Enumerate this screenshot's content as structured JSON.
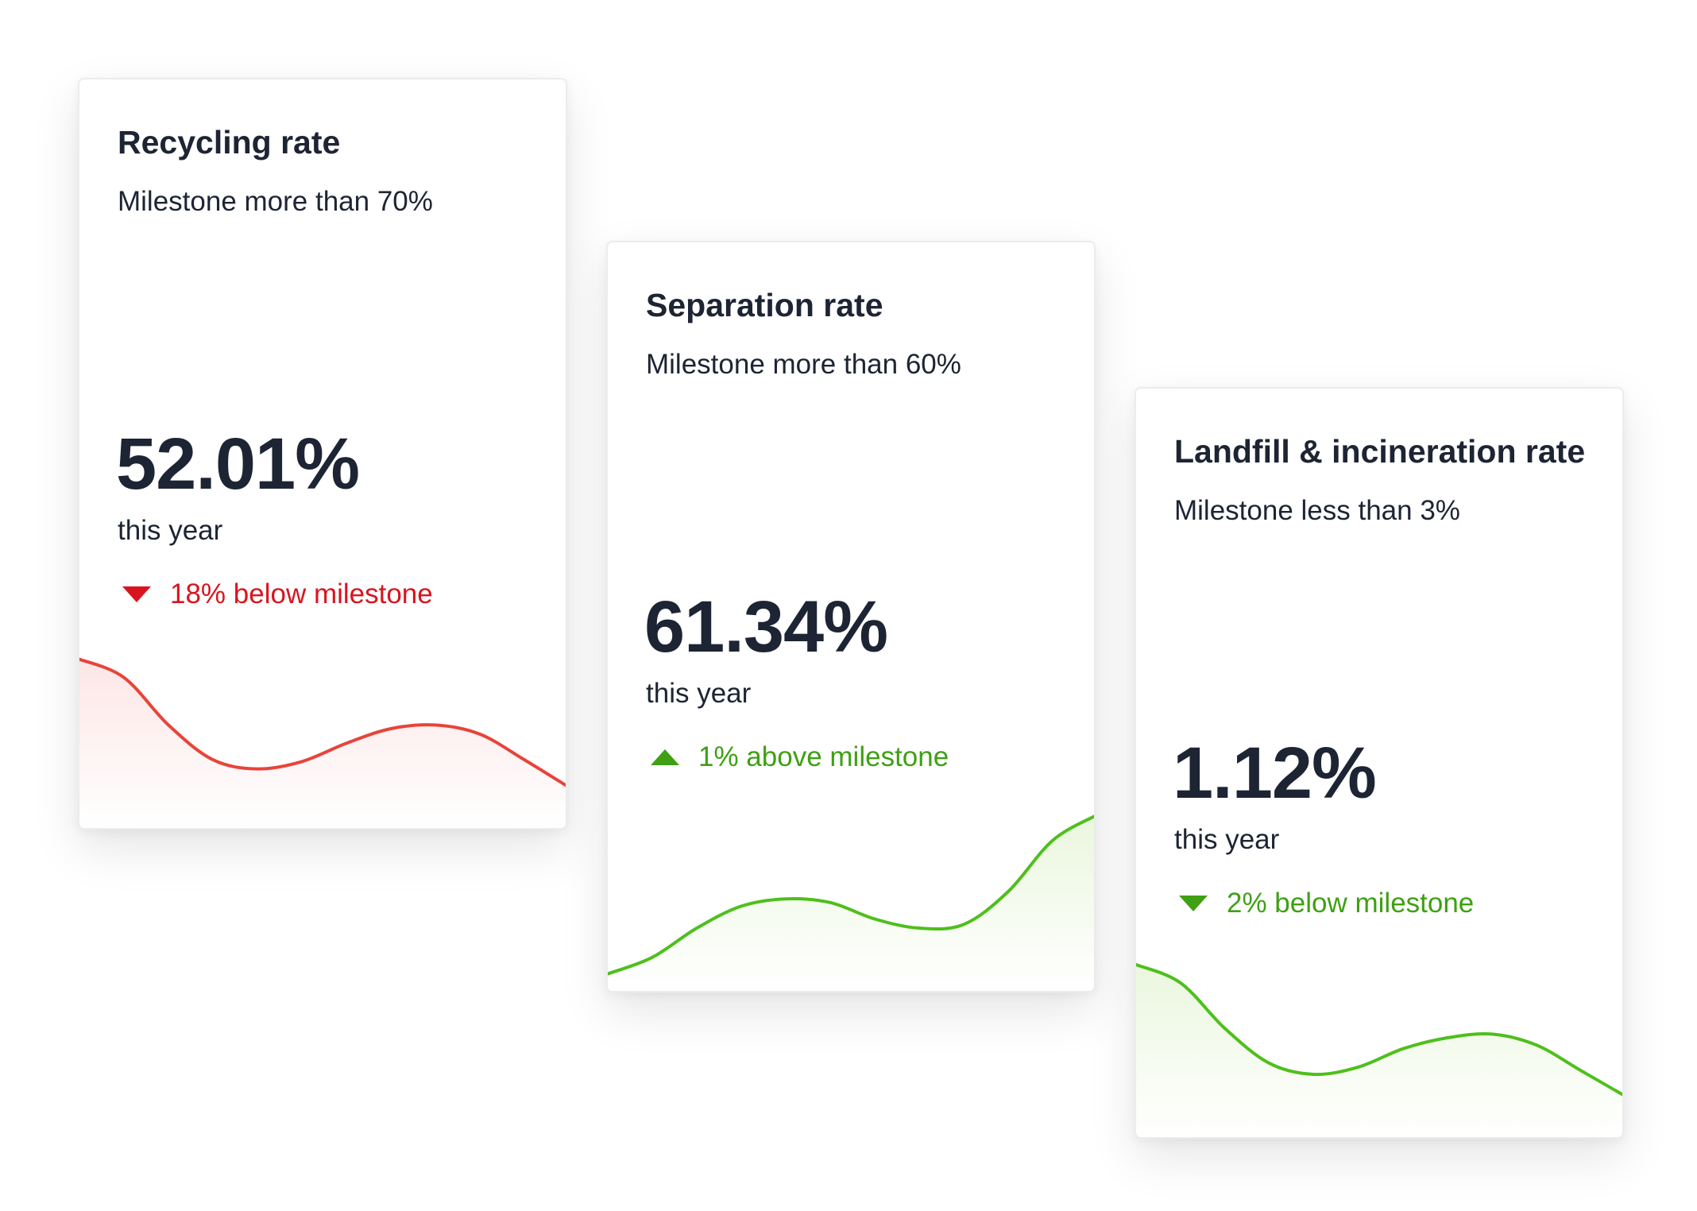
{
  "cards": [
    {
      "title": "Recycling rate",
      "milestone": "Milestone more than 70%",
      "value": "52.01%",
      "period": "this year",
      "delta": "18% below milestone",
      "direction": "down",
      "status_color": "#d9141e",
      "line_color": "#e8443a",
      "fill_color": "#fde6e6",
      "sparkline_values": [
        0.88,
        0.78,
        0.52,
        0.33,
        0.28,
        0.32,
        0.42,
        0.5,
        0.52,
        0.47,
        0.33,
        0.18
      ]
    },
    {
      "title": "Separation rate",
      "milestone": "Milestone more than 60%",
      "value": "61.34%",
      "period": "this year",
      "delta": "1% above milestone",
      "direction": "up",
      "status_color": "#3ea012",
      "line_color": "#4fbf1c",
      "fill_color": "#eaf7de",
      "sparkline_values": [
        0.05,
        0.14,
        0.3,
        0.42,
        0.46,
        0.44,
        0.35,
        0.3,
        0.32,
        0.5,
        0.78,
        0.92
      ]
    },
    {
      "title": "Landfill & incineration rate",
      "milestone": "Milestone less than 3%",
      "value": "1.12%",
      "period": "this year",
      "delta": "2% below milestone",
      "direction": "down",
      "status_color": "#3ea012",
      "line_color": "#4fbf1c",
      "fill_color": "#eaf7de",
      "sparkline_values": [
        0.9,
        0.8,
        0.55,
        0.36,
        0.3,
        0.34,
        0.44,
        0.5,
        0.52,
        0.46,
        0.32,
        0.18
      ]
    }
  ]
}
